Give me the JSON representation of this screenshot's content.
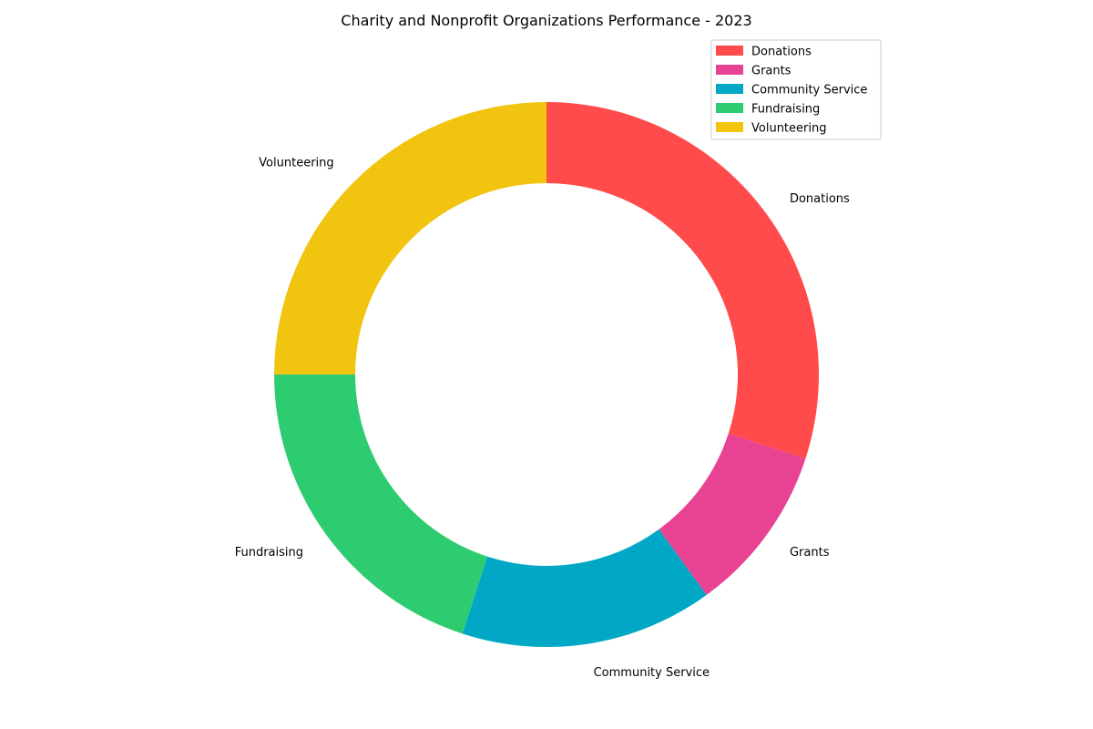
{
  "chart_data": {
    "type": "pie",
    "title": "Charity and Nonprofit Organizations Performance - 2023",
    "categories": [
      "Donations",
      "Grants",
      "Community Service",
      "Fundraising",
      "Volunteering"
    ],
    "values": [
      30,
      10,
      15,
      20,
      25
    ],
    "colors": [
      "#ff4b4b",
      "#e84393",
      "#00a8c6",
      "#2ecc71",
      "#f1c40f"
    ],
    "donut": true,
    "start_angle": "top",
    "direction": "clockwise",
    "legend": "top-right"
  }
}
